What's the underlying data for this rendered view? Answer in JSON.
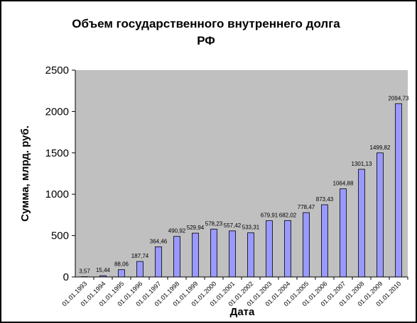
{
  "chart_data": {
    "type": "bar",
    "title_line1": "Объем государственного внутреннего долга",
    "title_line2": "РФ",
    "xlabel": "Дата",
    "ylabel": "Сумма, млрд. руб.",
    "ylim": [
      0,
      2500
    ],
    "yticks": [
      "0",
      "500",
      "1000",
      "1500",
      "2000",
      "2500"
    ],
    "grid": false,
    "legend": "none",
    "colors": {
      "plot_bg": "#c0c0c0",
      "bar_fill": "#9999ff",
      "bar_stroke": "#000000"
    },
    "categories": [
      "01.01.1993",
      "01.01.1994",
      "01.01.1995",
      "01.01.1996",
      "01.01.1997",
      "01.01.1998",
      "01.01.1999",
      "01.01.2000",
      "01.01.2001",
      "01.01.2002",
      "01.01.2003",
      "01.01.2004",
      "01.01.2005",
      "01.01.2006",
      "01.01.2007",
      "01.01.2008",
      "01.01.2009",
      "01.01.2010"
    ],
    "values": [
      3.57,
      15.44,
      88.06,
      187.74,
      364.46,
      490.92,
      529.94,
      578.23,
      557.42,
      533.31,
      679.91,
      682.02,
      778.47,
      873.43,
      1064.88,
      1301.13,
      1499.82,
      2094.73
    ],
    "value_labels": [
      "3,57",
      "15,44",
      "88,06",
      "187,74",
      "364,46",
      "490,92",
      "529,94",
      "578,23",
      "557,42",
      "533,31",
      "679,91",
      "682,02",
      "778,47",
      "873,43",
      "1064,88",
      "1301,13",
      "1499,82",
      "2094,73"
    ]
  }
}
